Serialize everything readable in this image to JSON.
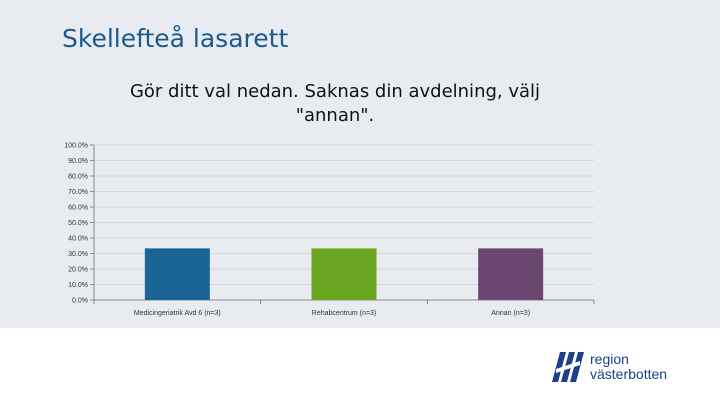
{
  "slide": {
    "title": "Skellefteå lasarett"
  },
  "logo": {
    "line1": "region",
    "line2": "västerbotten"
  },
  "colors": {
    "band": "#e8ecf1",
    "title": "#1a5a8c",
    "grid": "#d4d8dd",
    "axis": "#8a8a8a",
    "logo": "#1f3f8c"
  },
  "chart_data": {
    "type": "bar",
    "title": "Gör ditt val nedan. Saknas din avdelning, välj \"annan\".",
    "categories": [
      "Medicingeriatrik Avd 6 (n=3)",
      "Rehabcentrum (n=3)",
      "Annan (n=3)"
    ],
    "values": [
      33.3,
      33.3,
      33.3
    ],
    "bar_colors": [
      "#1a6496",
      "#6aa521",
      "#6b4670"
    ],
    "yticks": [
      "0.0%",
      "10.0%",
      "20.0%",
      "30.0%",
      "40.0%",
      "50.0%",
      "60.0%",
      "70.0%",
      "80.0%",
      "90.0%",
      "100.0%"
    ],
    "ylim": [
      0,
      100
    ],
    "grid": true,
    "xlabel": "",
    "ylabel": ""
  }
}
